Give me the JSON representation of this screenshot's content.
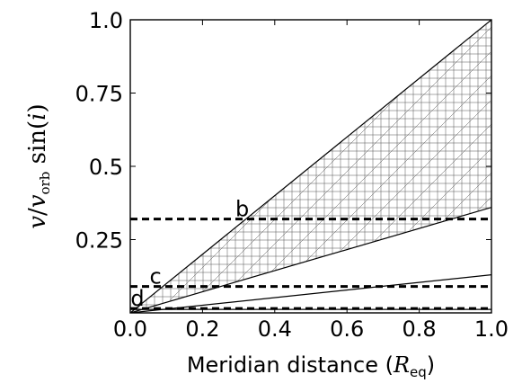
{
  "chart_data": {
    "type": "line",
    "title": "",
    "xlabel": "Meridian distance (",
    "xlabel_math": "R",
    "xlabel_sub": "eq",
    "xlabel_close": ")",
    "ylabel_parts": {
      "v": "v",
      "slash": "/",
      "v2": "v",
      "sub": "orb",
      "sin": " sin(",
      "i": "i",
      "close": ")"
    },
    "xlim": [
      0,
      1
    ],
    "ylim": [
      0,
      1
    ],
    "grid": false,
    "x_ticks": [
      {
        "value": 0.0,
        "label": "0.0"
      },
      {
        "value": 0.2,
        "label": "0.2"
      },
      {
        "value": 0.4,
        "label": "0.4"
      },
      {
        "value": 0.6,
        "label": "0.6"
      },
      {
        "value": 0.8,
        "label": "0.8"
      },
      {
        "value": 1.0,
        "label": "1.0"
      }
    ],
    "y_ticks": [
      {
        "value": 0.25,
        "label": "0.25"
      },
      {
        "value": 0.5,
        "label": "0.5"
      },
      {
        "value": 0.75,
        "label": "0.75"
      },
      {
        "value": 1.0,
        "label": "1.0"
      }
    ],
    "series": [
      {
        "style": "solid",
        "x": [
          0,
          1
        ],
        "y": [
          0,
          1.0
        ]
      },
      {
        "style": "solid",
        "x": [
          0,
          1
        ],
        "y": [
          0,
          0.36
        ]
      },
      {
        "style": "solid",
        "x": [
          0,
          1
        ],
        "y": [
          0,
          0.13
        ]
      },
      {
        "style": "solid",
        "x": [
          0,
          1
        ],
        "y": [
          0.012,
          0.012
        ]
      }
    ],
    "hatch_region": {
      "upper_slope": 1.0,
      "lower_slope": 0.36,
      "floor": 0.012
    },
    "hlines": [
      {
        "y": 0.32,
        "style": "dashed",
        "label": "b",
        "label_x": 0.31
      },
      {
        "y": 0.09,
        "style": "dashed",
        "label": "c",
        "label_x": 0.07
      },
      {
        "y": 0.015,
        "style": "dashed",
        "label": "d",
        "label_x": 0.02
      }
    ]
  }
}
